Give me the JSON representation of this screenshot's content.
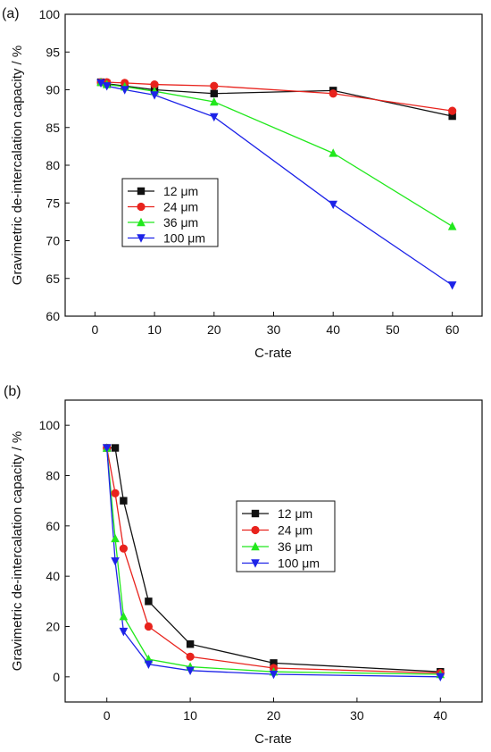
{
  "chart_data": [
    {
      "type": "line",
      "panel_label": "(a)",
      "xlabel": "C-rate",
      "ylabel": "Gravimetric de-intercalation capacity / %",
      "xlim": [
        -5,
        65
      ],
      "ylim": [
        60,
        100
      ],
      "xticks": [
        0,
        10,
        20,
        30,
        40,
        50,
        60
      ],
      "yticks": [
        60,
        65,
        70,
        75,
        80,
        85,
        90,
        95,
        100
      ],
      "xtick_labels": [
        "0",
        "10",
        "20",
        "30",
        "40",
        "50",
        "60"
      ],
      "ytick_labels": [
        "60",
        "65",
        "70",
        "75",
        "80",
        "85",
        "90",
        "95",
        "100"
      ],
      "grid": false,
      "legend_position": "lower-left",
      "series": [
        {
          "name": "12 μm",
          "color": "#111111",
          "marker": "square",
          "x": [
            1,
            2,
            5,
            10,
            20,
            40,
            60
          ],
          "y": [
            91.0,
            90.8,
            90.5,
            90.0,
            89.5,
            89.9,
            86.5
          ]
        },
        {
          "name": "24 μm",
          "color": "#e8231d",
          "marker": "circle",
          "x": [
            1,
            2,
            5,
            10,
            20,
            40,
            60
          ],
          "y": [
            91.0,
            91.0,
            90.9,
            90.7,
            90.5,
            89.5,
            87.2
          ]
        },
        {
          "name": "36 μm",
          "color": "#22e81d",
          "marker": "triangle-up",
          "x": [
            1,
            2,
            5,
            10,
            20,
            40,
            60
          ],
          "y": [
            91.0,
            90.7,
            90.4,
            89.8,
            88.4,
            81.6,
            71.9
          ]
        },
        {
          "name": "100 μm",
          "color": "#1d23e8",
          "marker": "triangle-down",
          "x": [
            1,
            2,
            5,
            10,
            20,
            40,
            60
          ],
          "y": [
            90.9,
            90.5,
            90.0,
            89.3,
            86.4,
            74.8,
            64.1
          ]
        }
      ]
    },
    {
      "type": "line",
      "panel_label": "(b)",
      "xlabel": "C-rate",
      "ylabel": "Gravimetric de-intercalation capacity / %",
      "xlim": [
        -5,
        45
      ],
      "ylim": [
        -10,
        110
      ],
      "xticks": [
        0,
        10,
        20,
        30,
        40
      ],
      "yticks": [
        0,
        20,
        40,
        60,
        80,
        100
      ],
      "xtick_labels": [
        "0",
        "10",
        "20",
        "30",
        "40"
      ],
      "ytick_labels": [
        "0",
        "20",
        "40",
        "60",
        "80",
        "100"
      ],
      "grid": false,
      "legend_position": "center",
      "series": [
        {
          "name": "12 μm",
          "color": "#111111",
          "marker": "square",
          "x": [
            0,
            1,
            2,
            5,
            10,
            20,
            40
          ],
          "y": [
            91,
            91,
            70,
            30,
            13,
            5.5,
            2
          ]
        },
        {
          "name": "24 μm",
          "color": "#e8231d",
          "marker": "circle",
          "x": [
            0,
            1,
            2,
            5,
            10,
            20,
            40
          ],
          "y": [
            91,
            73,
            51,
            20,
            8,
            3.5,
            1.5
          ]
        },
        {
          "name": "36 μm",
          "color": "#22e81d",
          "marker": "triangle-up",
          "x": [
            0,
            1,
            2,
            5,
            10,
            20,
            40
          ],
          "y": [
            91,
            55,
            24,
            7,
            4,
            2,
            1
          ]
        },
        {
          "name": "100 μm",
          "color": "#1d23e8",
          "marker": "triangle-down",
          "x": [
            0,
            1,
            2,
            5,
            10,
            20,
            40
          ],
          "y": [
            91,
            46,
            18,
            5,
            2.5,
            1,
            0
          ]
        }
      ]
    }
  ]
}
